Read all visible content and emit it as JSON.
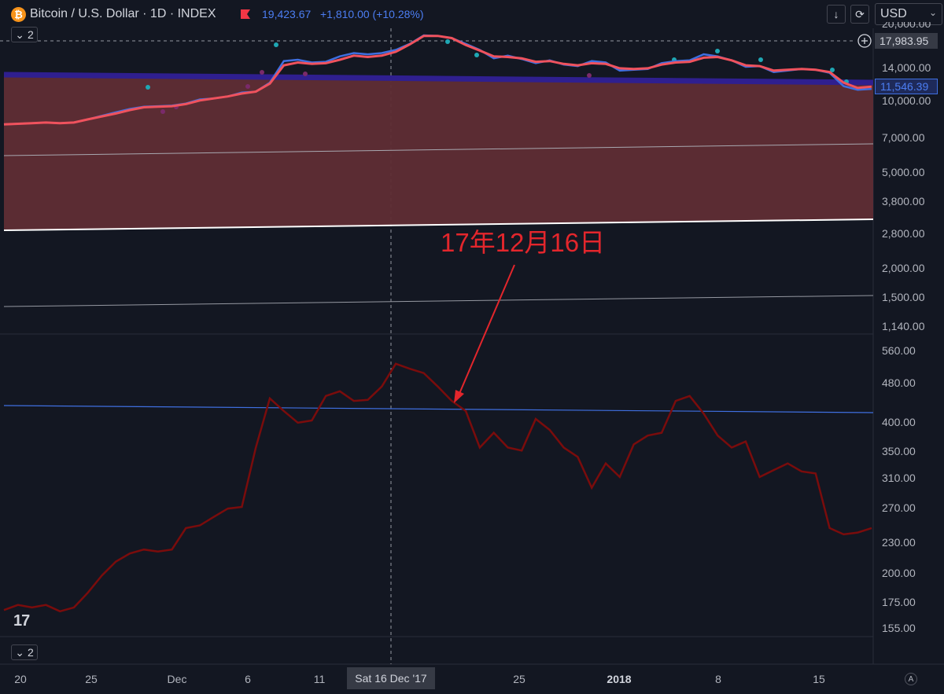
{
  "header": {
    "logo_glyph": "₿",
    "title": "Bitcoin / U.S. Dollar · 1D · INDEX",
    "last_price": "19,423.67",
    "change": "+1,810.00 (+10.28%)",
    "flag_color": "#f23645",
    "buttons": [
      {
        "icon": "arrow-down-icon",
        "glyph": "↓"
      },
      {
        "icon": "refresh-icon",
        "glyph": "⟳"
      }
    ],
    "currency": "USD"
  },
  "panes": {
    "main_collapse": "2",
    "lower_collapse": "2"
  },
  "price_scale": {
    "main_labels": [
      "20,000.00",
      "14,000.00",
      "10,000.00",
      "7,000.00",
      "5,000.00",
      "3,800.00",
      "2,800.00",
      "2,000.00",
      "1,500.00",
      "1,140.00"
    ],
    "crosshair_price": "17,983.95",
    "current_price": "11,546.39",
    "lower_labels": [
      "560.00",
      "480.00",
      "400.00",
      "350.00",
      "310.00",
      "270.00",
      "230.00",
      "200.00",
      "175.00",
      "155.00"
    ]
  },
  "time_scale": {
    "labels": [
      "20",
      "25",
      "Dec",
      "6",
      "11",
      "25",
      "2018",
      "8",
      "15"
    ],
    "crosshair_date": "Sat 16 Dec '17",
    "auto_label": "A"
  },
  "annotation": {
    "text": "17年12月16日",
    "color": "#e3262c"
  },
  "brand": {
    "logo_text": "17"
  },
  "chart_data": [
    {
      "type": "line",
      "series": [
        {
          "values": [
            8000,
            8050,
            8100,
            8150,
            8100,
            8150,
            8400,
            8700,
            9000,
            9300,
            9500,
            9550,
            9600,
            9800,
            10200,
            10300,
            10500,
            10900,
            11000,
            12000,
            14800,
            15000,
            14600,
            14700,
            15500,
            16000,
            15800,
            16000,
            16500,
            17500,
            19000,
            18900,
            18500,
            17500,
            16500,
            15200,
            15600,
            15100,
            14500,
            14900,
            14300,
            14100,
            14800,
            14600,
            13500,
            13600,
            13700,
            14500,
            14800,
            14900,
            15800,
            15500,
            14900,
            14000,
            14100,
            13300,
            13500,
            13700,
            13600,
            13200,
            11600,
            11200,
            11300
          ]
        },
        {
          "values": [
            8000,
            8050,
            8100,
            8150,
            8100,
            8150,
            8400,
            8650,
            8900,
            9200,
            9450,
            9500,
            9550,
            9750,
            10100,
            10300,
            10500,
            10800,
            11000,
            11900,
            14200,
            14600,
            14400,
            14500,
            15000,
            15600,
            15400,
            15600,
            16200,
            17400,
            18900,
            18900,
            18500,
            17300,
            16400,
            15500,
            15400,
            15200,
            14700,
            14800,
            14400,
            14200,
            14500,
            14400,
            13800,
            13700,
            13800,
            14300,
            14600,
            14700,
            15300,
            15400,
            14900,
            14200,
            14100,
            13500,
            13600,
            13700,
            13600,
            13300,
            12000,
            11400,
            11546
          ]
        }
      ]
    },
    {
      "type": "line",
      "series": [
        {
          "values": [
            168,
            172,
            170,
            172,
            167,
            170,
            182,
            197,
            210,
            218,
            222,
            220,
            222,
            245,
            248,
            258,
            268,
            270,
            355,
            445,
            420,
            398,
            402,
            450,
            460,
            440,
            442,
            470,
            522,
            510,
            500,
            470,
            440,
            420,
            355,
            380,
            355,
            350,
            405,
            385,
            355,
            340,
            295,
            330,
            310,
            360,
            375,
            380,
            440,
            450,
            415,
            375,
            355,
            365,
            310,
            320,
            330,
            318,
            315,
            245,
            238,
            240,
            245
          ]
        }
      ]
    }
  ]
}
